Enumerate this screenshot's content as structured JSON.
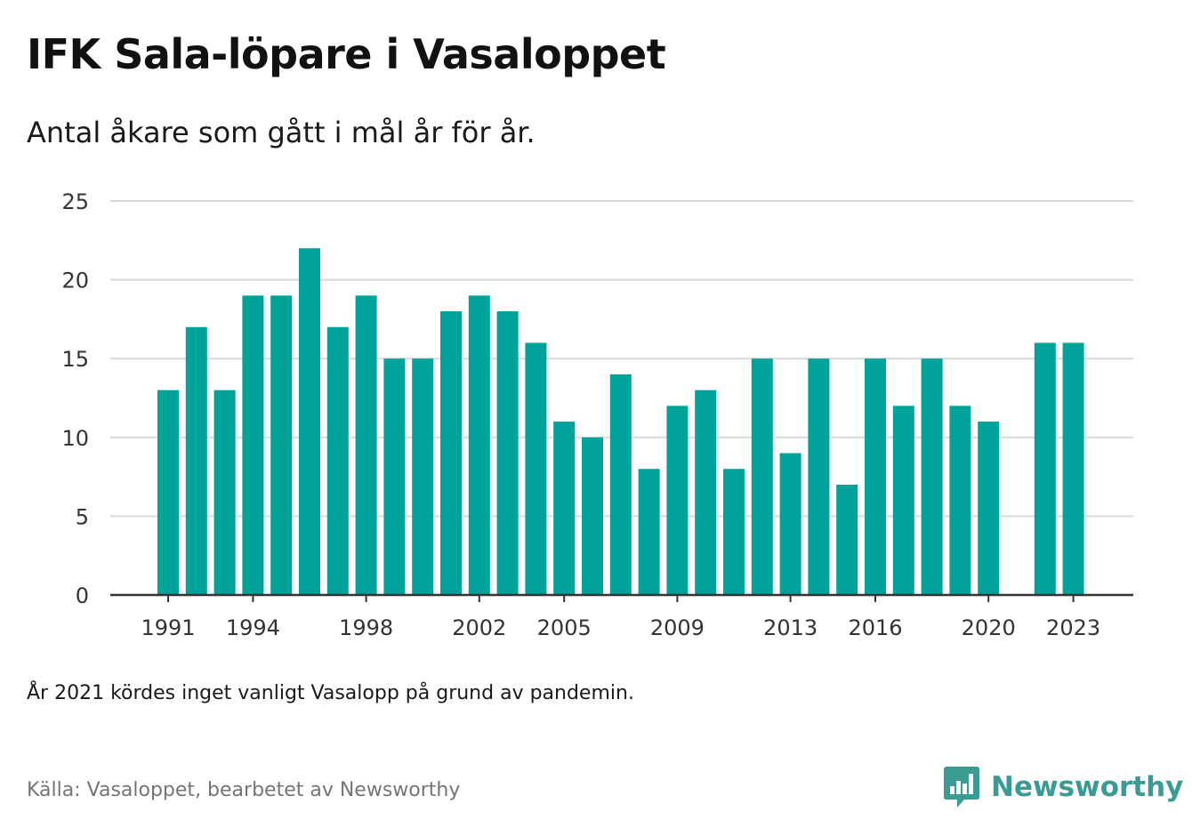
{
  "title": "IFK Sala-löpare i Vasaloppet",
  "subtitle": "Antal åkare som gått i mål år för år.",
  "note": "År 2021 kördes inget vanligt Vasalopp på grund av pandemin.",
  "source": "Källa: Vasaloppet, bearbetet av Newsworthy",
  "logo": {
    "text": "Newsworthy",
    "icon": "newsworthy-bar-chart-icon"
  },
  "colors": {
    "bar": "#00a39a",
    "grid": "#d9d9d9",
    "axis": "#333333",
    "brand": "#3a9a94"
  },
  "chart_data": {
    "type": "bar",
    "title": "IFK Sala-löpare i Vasaloppet",
    "subtitle": "Antal åkare som gått i mål år för år.",
    "xlabel": "",
    "ylabel": "",
    "ylim": [
      0,
      25
    ],
    "y_ticks": [
      "0",
      "5",
      "10",
      "15",
      "20",
      "25"
    ],
    "x_tick_labels": [
      "1991",
      "1994",
      "1998",
      "2002",
      "2005",
      "2009",
      "2013",
      "2016",
      "2020",
      "2023"
    ],
    "grid": true,
    "legend": "none",
    "categories": [
      "1991",
      "1992",
      "1993",
      "1994",
      "1995",
      "1996",
      "1997",
      "1998",
      "1999",
      "2000",
      "2001",
      "2002",
      "2003",
      "2004",
      "2005",
      "2006",
      "2007",
      "2008",
      "2009",
      "2010",
      "2011",
      "2012",
      "2013",
      "2014",
      "2015",
      "2016",
      "2017",
      "2018",
      "2019",
      "2020",
      "2021",
      "2022",
      "2023"
    ],
    "values": [
      13,
      17,
      13,
      19,
      19,
      22,
      17,
      19,
      15,
      15,
      18,
      19,
      18,
      16,
      11,
      10,
      14,
      8,
      12,
      13,
      8,
      15,
      9,
      15,
      7,
      15,
      12,
      15,
      12,
      11,
      null,
      16,
      16
    ]
  }
}
